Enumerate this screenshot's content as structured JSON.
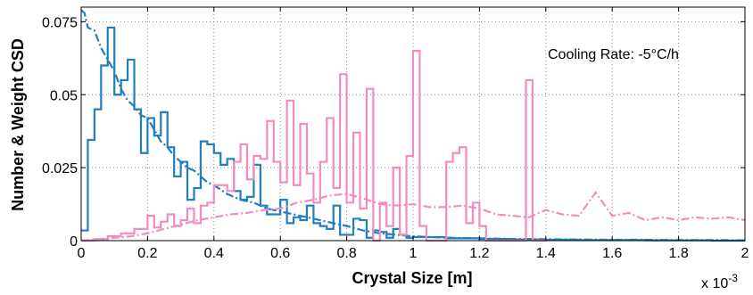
{
  "chart_data": {
    "type": "line",
    "title": "",
    "xlabel": "Crystal Size  [m]",
    "ylabel": "Number & Weight CSD",
    "x_multiplier_label": "x 10",
    "x_multiplier_exponent": "-3",
    "annotation": "Cooling Rate: -5°C/h",
    "xlim": [
      0,
      0.002
    ],
    "ylim": [
      0,
      0.08
    ],
    "grid": true,
    "x_ticks": [
      0,
      0.0002,
      0.0004,
      0.0006,
      0.0008,
      0.001,
      0.0012,
      0.0014,
      0.0016,
      0.0018,
      0.002
    ],
    "x_tick_labels": [
      "0",
      "0.2",
      "0.4",
      "0.6",
      "0.8",
      "1",
      "1.2",
      "1.4",
      "1.6",
      "1.8",
      "2"
    ],
    "y_ticks": [
      0,
      0.025,
      0.05,
      0.075
    ],
    "y_tick_labels": [
      "0",
      "0.025",
      "0.05",
      "0.075"
    ],
    "colors": {
      "number": "#1f7fbf",
      "weight": "#f28cc0"
    },
    "series": [
      {
        "style": "step",
        "color": "#1f7fbf",
        "x": [
          0,
          2e-05,
          4e-05,
          6e-05,
          8e-05,
          0.0001,
          0.00012,
          0.00014,
          0.00016,
          0.00018,
          0.0002,
          0.00022,
          0.00024,
          0.00026,
          0.00028,
          0.0003,
          0.00032,
          0.00034,
          0.00036,
          0.00038,
          0.0004,
          0.00042,
          0.00044,
          0.00046,
          0.00048,
          0.0005,
          0.00052,
          0.00054,
          0.00056,
          0.00058,
          0.0006,
          0.00062,
          0.00064,
          0.00066,
          0.00068,
          0.0007,
          0.00072,
          0.00074,
          0.00076,
          0.00078,
          0.0008,
          0.00082,
          0.00084,
          0.00086,
          0.00088,
          0.0009,
          0.00092,
          0.00094,
          0.00096,
          0.00098,
          0.001,
          0.0011,
          0.0012,
          0.0013,
          0.0014,
          0.0015,
          0.0016,
          0.0017,
          0.0018,
          0.0019,
          0.002
        ],
        "values": [
          0.0035,
          0.0345,
          0.045,
          0.06,
          0.073,
          0.05,
          0.055,
          0.062,
          0.045,
          0.03,
          0.042,
          0.036,
          0.044,
          0.032,
          0.022,
          0.027,
          0.014,
          0.018,
          0.034,
          0.033,
          0.03,
          0.026,
          0.028,
          0.017,
          0.014,
          0.015,
          0.026,
          0.012,
          0.009,
          0.009,
          0.014,
          0.006,
          0.008,
          0.007,
          0.012,
          0.006,
          0.005,
          0.004,
          0.012,
          0.002,
          0.002,
          0.0075,
          0.007,
          0.001,
          0.0035,
          0.003,
          0.001,
          0.004,
          0.002,
          0.001,
          0.0012,
          0.0008,
          0.0006,
          0.0004,
          0.0003,
          0.0002,
          0.0002,
          0.0001,
          0.0001,
          0.0,
          0.0
        ]
      },
      {
        "style": "dashdot",
        "color": "#1f7fbf",
        "x": [
          0,
          1e-05,
          2e-05,
          4e-05,
          6e-05,
          8e-05,
          0.0001,
          0.00012,
          0.00014,
          0.00016,
          0.00018,
          0.0002,
          0.00022,
          0.00024,
          0.00026,
          0.00028,
          0.0003,
          0.00032,
          0.00034,
          0.00036,
          0.00038,
          0.0004,
          0.00044,
          0.00048,
          0.00052,
          0.00056,
          0.0006,
          0.00064,
          0.00068,
          0.00072,
          0.00076,
          0.0008,
          0.00085,
          0.0009,
          0.00095,
          0.001,
          0.0011,
          0.0012,
          0.0013,
          0.0014,
          0.0015,
          0.0016,
          0.0017,
          0.0018,
          0.0019,
          0.002
        ],
        "values": [
          0.079,
          0.078,
          0.073,
          0.072,
          0.066,
          0.062,
          0.058,
          0.052,
          0.048,
          0.046,
          0.043,
          0.042,
          0.038,
          0.034,
          0.032,
          0.029,
          0.027,
          0.025,
          0.024,
          0.022,
          0.02,
          0.019,
          0.016,
          0.014,
          0.013,
          0.011,
          0.01,
          0.009,
          0.008,
          0.007,
          0.006,
          0.005,
          0.0035,
          0.0025,
          0.002,
          0.0015,
          0.001,
          0.0008,
          0.0006,
          0.0005,
          0.0004,
          0.0003,
          0.0003,
          0.0002,
          0.0002,
          0.0001
        ]
      },
      {
        "style": "step",
        "color": "#f28cc0",
        "x": [
          0,
          4e-05,
          8e-05,
          0.00012,
          0.00016,
          0.0002,
          0.00022,
          0.00024,
          0.00026,
          0.00028,
          0.0003,
          0.00032,
          0.00034,
          0.00036,
          0.00038,
          0.0004,
          0.00042,
          0.00044,
          0.00046,
          0.00048,
          0.0005,
          0.00052,
          0.00054,
          0.00056,
          0.00058,
          0.0006,
          0.00062,
          0.00064,
          0.00066,
          0.00068,
          0.0007,
          0.00072,
          0.00074,
          0.00076,
          0.00078,
          0.0008,
          0.00082,
          0.00084,
          0.00086,
          0.00088,
          0.0009,
          0.00092,
          0.00094,
          0.00096,
          0.00098,
          0.001,
          0.00102,
          0.00104,
          0.00106,
          0.00108,
          0.0011,
          0.00112,
          0.00114,
          0.00116,
          0.00118,
          0.0012,
          0.00122,
          0.00124,
          0.00126,
          0.00128,
          0.0013,
          0.00132,
          0.00134,
          0.00136,
          0.00138,
          0.0014
        ],
        "values": [
          0.0,
          0.0005,
          0.0015,
          0.0025,
          0.004,
          0.0085,
          0.0045,
          0.0065,
          0.009,
          0.005,
          0.007,
          0.011,
          0.006,
          0.012,
          0.013,
          0.019,
          0.019,
          0.017,
          0.027,
          0.033,
          0.021,
          0.029,
          0.028,
          0.041,
          0.027,
          0.02,
          0.048,
          0.019,
          0.04,
          0.023,
          0.013,
          0.027,
          0.042,
          0.018,
          0.057,
          0.013,
          0.037,
          0.011,
          0.052,
          0.0,
          0.013,
          0.005,
          0.025,
          0.002,
          0.029,
          0.065,
          0.005,
          0.0,
          0.0,
          0.0,
          0.027,
          0.03,
          0.032,
          0.006,
          0.013,
          0.005,
          0.0,
          0.0,
          0.0,
          0.0,
          0.0,
          0.0,
          0.055,
          0.0,
          0.0,
          0.0
        ]
      },
      {
        "style": "dashdot",
        "color": "#f28cc0",
        "x": [
          0,
          5e-05,
          0.0001,
          0.00015,
          0.0002,
          0.00025,
          0.0003,
          0.00035,
          0.0004,
          0.00045,
          0.0005,
          0.00055,
          0.0006,
          0.00065,
          0.0007,
          0.00075,
          0.0008,
          0.00085,
          0.0009,
          0.00095,
          0.001,
          0.00105,
          0.0011,
          0.00115,
          0.0012,
          0.00125,
          0.0013,
          0.00135,
          0.0014,
          0.00145,
          0.0015,
          0.00155,
          0.0016,
          0.00165,
          0.0017,
          0.00175,
          0.0018,
          0.00185,
          0.0019,
          0.00195,
          0.002
        ],
        "values": [
          0.0,
          0.0005,
          0.001,
          0.0015,
          0.0025,
          0.004,
          0.0055,
          0.007,
          0.008,
          0.009,
          0.0095,
          0.0105,
          0.011,
          0.013,
          0.014,
          0.0155,
          0.016,
          0.0145,
          0.0125,
          0.012,
          0.0125,
          0.0115,
          0.0115,
          0.012,
          0.011,
          0.009,
          0.0085,
          0.008,
          0.0105,
          0.009,
          0.0085,
          0.0165,
          0.0085,
          0.0095,
          0.007,
          0.008,
          0.007,
          0.008,
          0.0075,
          0.008,
          0.007
        ]
      }
    ]
  }
}
